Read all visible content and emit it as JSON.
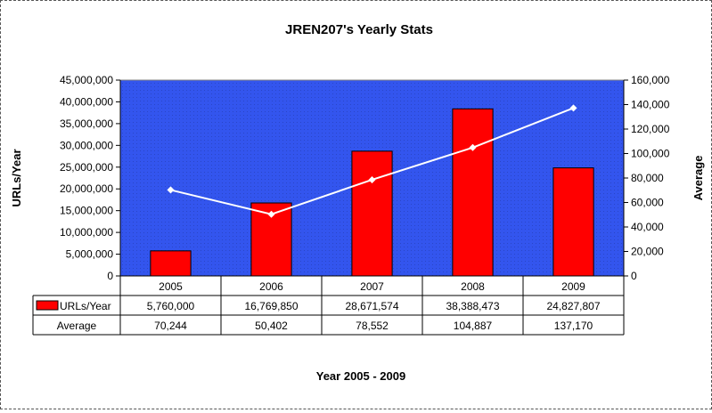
{
  "chart_data": {
    "type": "bar",
    "title": "JREN207's Yearly Stats",
    "xlabel": "Year 2005 - 2009",
    "ylabel": "URLs/Year",
    "y2label": "Average",
    "categories": [
      "2005",
      "2006",
      "2007",
      "2008",
      "2009"
    ],
    "ylim": [
      0,
      45000000
    ],
    "y2lim": [
      0,
      160000
    ],
    "yticks": [
      "0",
      "5,000,000",
      "10,000,000",
      "15,000,000",
      "20,000,000",
      "25,000,000",
      "30,000,000",
      "35,000,000",
      "40,000,000",
      "45,000,000"
    ],
    "y2ticks": [
      "0",
      "20,000",
      "40,000",
      "60,000",
      "80,000",
      "100,000",
      "120,000",
      "140,000",
      "160,000"
    ],
    "series": [
      {
        "name": "URLs/Year",
        "type": "bar",
        "axis": "left",
        "values": [
          5760000,
          16769850,
          28671574,
          38388473,
          24827807
        ],
        "labels": [
          "5,760,000",
          "16,769,850",
          "28,671,574",
          "38,388,473",
          "24,827,807"
        ],
        "color": "#ff0000"
      },
      {
        "name": "Average",
        "type": "line",
        "axis": "right",
        "values": [
          70244,
          50402,
          78552,
          104887,
          137170
        ],
        "labels": [
          "70,244",
          "50,402",
          "78,552",
          "104,887",
          "137,170"
        ],
        "color": "#ffffff"
      }
    ],
    "plot_background": "#3355ee",
    "grid": false,
    "legend": "data-table"
  }
}
